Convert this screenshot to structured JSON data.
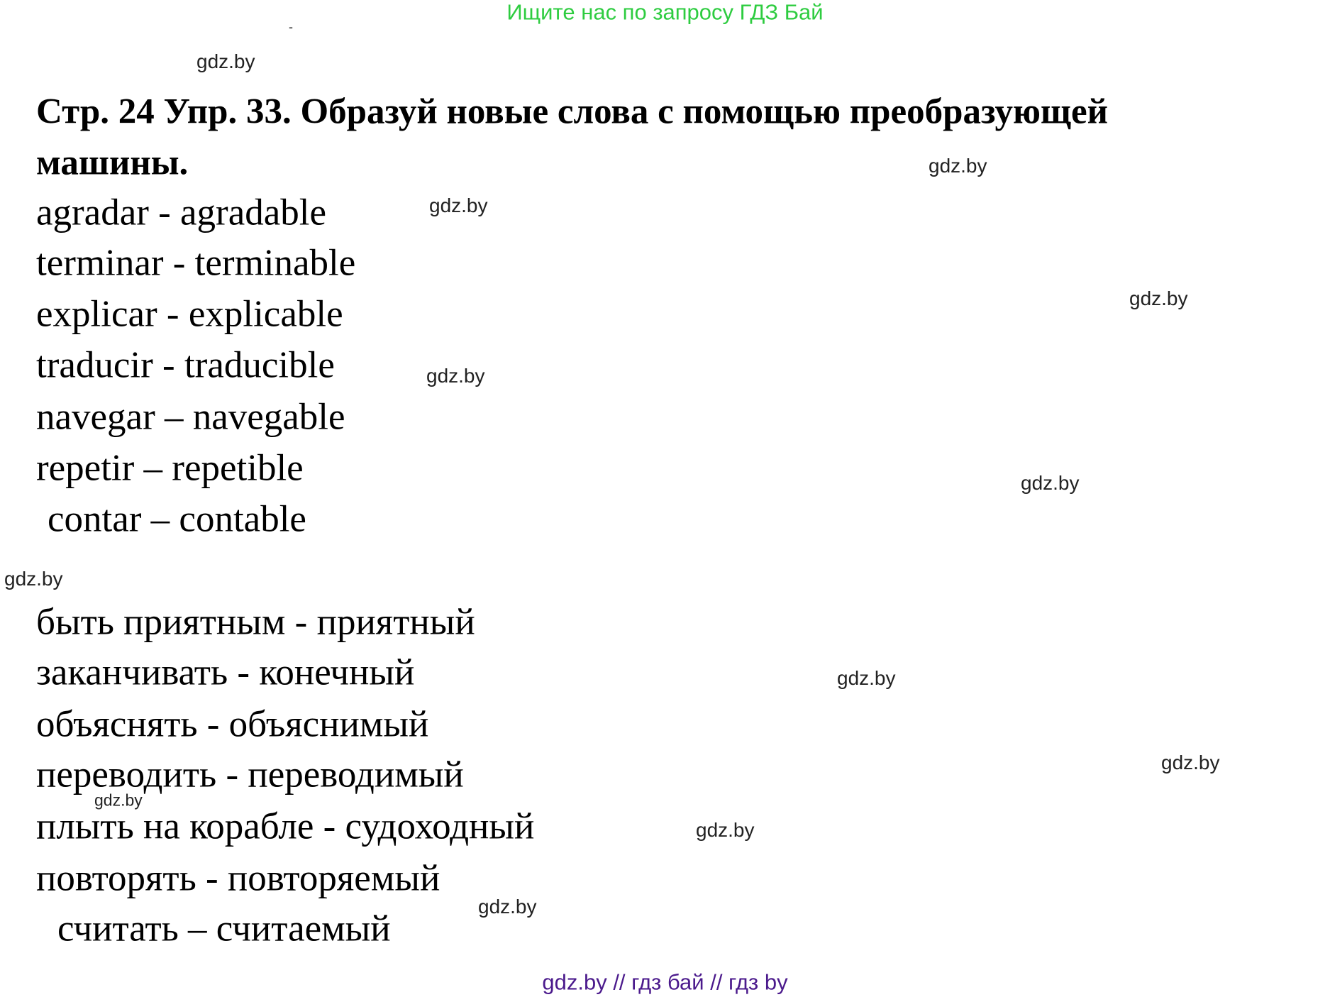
{
  "header_banner": "Ищите нас по запросу ГДЗ Бай",
  "stray_mark": "-",
  "title_line1": "Стр. 24 Упр. 33.  Образуй новые слова с помощью преобразующей",
  "title_line2": "машины.",
  "spanish_pairs": [
    "agradar - agradable",
    "terminar - terminable",
    "explicar - explicable",
    "traducir - traducible",
    "navegar – navegable",
    "repetir – repetible",
    "contar – contable"
  ],
  "russian_pairs": [
    "быть приятным - приятный",
    "заканчивать - конечный",
    "объяснять - объяснимый",
    "переводить - переводимый",
    "плыть на корабле - судоходный",
    "повторять - повторяемый",
    "считать – считаемый"
  ],
  "watermark": "gdz.by",
  "footer": "gdz.by  //  гдз бай  //  гдз by",
  "colors": {
    "banner": "#2ecc40",
    "footer": "#4b1a8c",
    "text": "#000000"
  }
}
